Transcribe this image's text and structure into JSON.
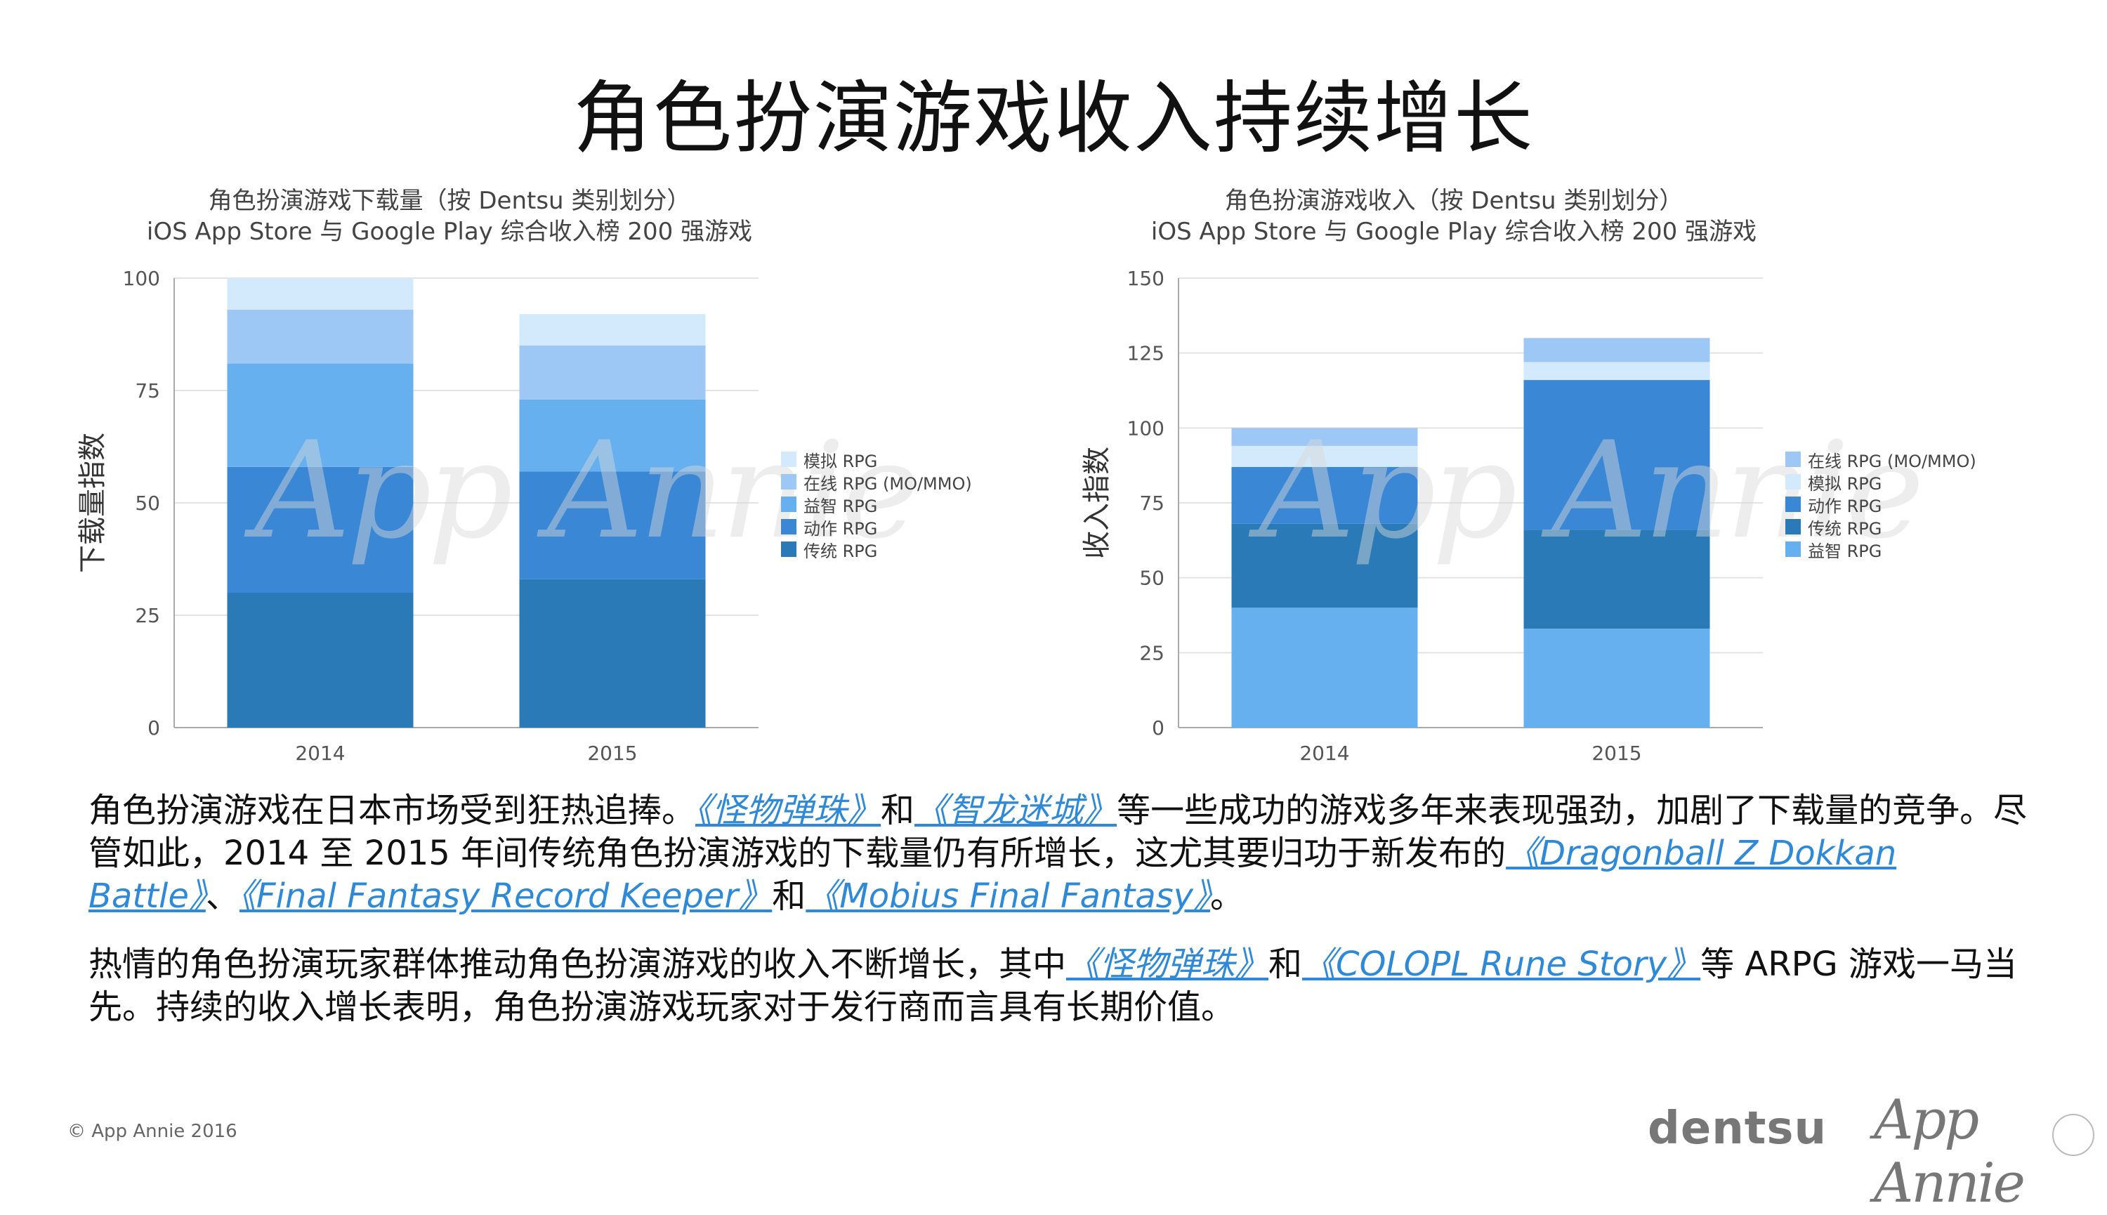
{
  "page": {
    "title": "角色扮演游戏收入持续增长",
    "footer_copyright": "© App Annie 2016",
    "logos": {
      "dentsu": "dentsu",
      "app_annie": "App Annie"
    },
    "watermark": "App Annie"
  },
  "paragraphs": {
    "p1": {
      "t1": "角色扮演游戏在日本市场受到狂热追捧。",
      "l1": "《怪物弹珠》",
      "t2": "和",
      "l2": "《智龙迷城》",
      "t3": "等一些成功的游戏多年来表现强劲，加剧了下载量的竞争。尽管如此，2014 至 2015 年间传统角色扮演游戏的下载量仍有所增长，这尤其要归功于新发布的",
      "l3": "《Dragonball Z Dokkan Battle》",
      "t4": "、",
      "l4": "《Final Fantasy Record Keeper》",
      "t5": "和",
      "l5": "《Mobius Final Fantasy》",
      "t6": "。"
    },
    "p2": {
      "t1": "热情的角色扮演玩家群体推动角色扮演游戏的收入不断增长，其中",
      "l1": "《怪物弹珠》",
      "t2": "和",
      "l2": "《COLOPL Rune Story》",
      "t3": "等 ARPG 游戏一马当先。持续的收入增长表明，角色扮演游戏玩家对于发行商而言具有长期价值。"
    }
  },
  "chart_data": [
    {
      "type": "bar",
      "stacked": true,
      "title": "角色扮演游戏下载量（按 Dentsu 类别划分）",
      "subtitle": "iOS App Store 与 Google Play 综合收入榜 200 强游戏",
      "ylabel": "下载量指数",
      "xlabel": "",
      "categories": [
        "2014",
        "2015"
      ],
      "ylim": [
        0,
        100
      ],
      "yticks": [
        0,
        25,
        50,
        75,
        100
      ],
      "grid": true,
      "legend_position": "right",
      "legend_order": [
        "模拟 RPG",
        "在线 RPG (MO/MMO)",
        "益智 RPG",
        "动作 RPG",
        "传统 RPG"
      ],
      "series": [
        {
          "name": "传统 RPG",
          "color": "#2a7ab7",
          "values": [
            30,
            33
          ]
        },
        {
          "name": "动作 RPG",
          "color": "#3a87d5",
          "values": [
            28,
            24
          ]
        },
        {
          "name": "益智 RPG",
          "color": "#66b0f0",
          "values": [
            23,
            16
          ]
        },
        {
          "name": "在线 RPG (MO/MMO)",
          "color": "#9dc8f6",
          "values": [
            12,
            12
          ]
        },
        {
          "name": "模拟 RPG",
          "color": "#d3eafc",
          "values": [
            7,
            7
          ]
        }
      ]
    },
    {
      "type": "bar",
      "stacked": true,
      "title": "角色扮演游戏收入（按 Dentsu 类别划分）",
      "subtitle": "iOS App Store 与 Google Play 综合收入榜 200 强游戏",
      "ylabel": "收入指数",
      "xlabel": "",
      "categories": [
        "2014",
        "2015"
      ],
      "ylim": [
        0,
        150
      ],
      "yticks": [
        0,
        25,
        50,
        75,
        100,
        125,
        150
      ],
      "grid": true,
      "legend_position": "right",
      "legend_order": [
        "在线 RPG (MO/MMO)",
        "模拟 RPG",
        "动作 RPG",
        "传统 RPG",
        "益智 RPG"
      ],
      "series": [
        {
          "name": "益智 RPG",
          "color": "#66b0f0",
          "values": [
            40,
            33
          ]
        },
        {
          "name": "传统 RPG",
          "color": "#2a7ab7",
          "values": [
            28,
            33
          ]
        },
        {
          "name": "动作 RPG",
          "color": "#3a87d5",
          "values": [
            19,
            50
          ]
        },
        {
          "name": "模拟 RPG",
          "color": "#d3eafc",
          "values": [
            7,
            6
          ]
        },
        {
          "name": "在线 RPG (MO/MMO)",
          "color": "#9dc8f6",
          "values": [
            6,
            8
          ]
        }
      ]
    }
  ]
}
